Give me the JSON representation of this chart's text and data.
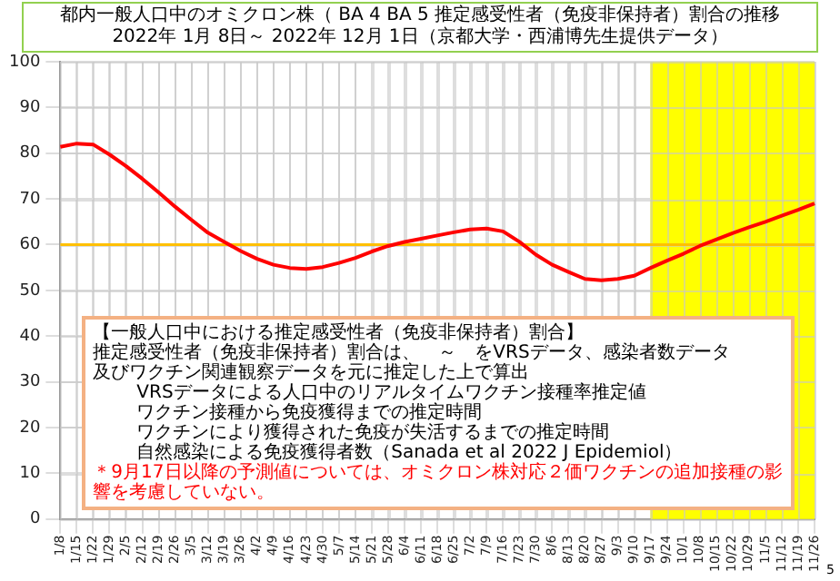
{
  "chart_data": {
    "type": "line",
    "title": "都内一般人口中のオミクロン株（ BA 4 BA 5 推定感受性者（免疫非保持者）割合の推移",
    "subtitle": "2022年 1月 8日～ 2022年 12月 1日（京都大学・西浦博先生提供データ）",
    "categories": [
      "1/8",
      "1/15",
      "1/22",
      "1/29",
      "2/5",
      "2/12",
      "2/19",
      "2/26",
      "3/5",
      "3/12",
      "3/19",
      "3/26",
      "4/2",
      "4/9",
      "4/16",
      "4/23",
      "4/30",
      "5/7",
      "5/14",
      "5/21",
      "5/28",
      "6/4",
      "6/11",
      "6/18",
      "6/25",
      "7/2",
      "7/9",
      "7/16",
      "7/23",
      "7/30",
      "8/6",
      "8/13",
      "8/20",
      "8/27",
      "9/3",
      "9/10",
      "9/17",
      "9/24",
      "10/1",
      "10/8",
      "10/15",
      "10/22",
      "10/29",
      "11/5",
      "11/12",
      "11/19",
      "11/26"
    ],
    "series": [
      {
        "color": "#ff0000",
        "values": [
          81.4,
          82.1,
          81.9,
          79.7,
          77.2,
          74.4,
          71.4,
          68.3,
          65.4,
          62.6,
          60.6,
          58.6,
          56.9,
          55.6,
          54.9,
          54.7,
          55.1,
          56,
          57.1,
          58.5,
          59.7,
          60.6,
          61.3,
          62,
          62.7,
          63.3,
          63.5,
          62.9,
          60.6,
          57.8,
          55.6,
          54,
          52.5,
          52.2,
          52.5,
          53.2,
          54.9,
          56.5,
          58,
          59.7,
          61.1,
          62.5,
          63.8,
          65,
          66.3,
          67.6,
          69
        ]
      }
    ],
    "ylim": [
      0,
      100
    ],
    "yticks": [
      0,
      10,
      20,
      30,
      40,
      50,
      60,
      70,
      80,
      90,
      100
    ],
    "grid": true,
    "legend": false,
    "ref_lines": [
      {
        "axis": "y",
        "value": 60,
        "color": "#ffc000"
      }
    ],
    "bands": [
      {
        "axis": "x",
        "from": "9/17",
        "to": "11/26",
        "color": "#ffff00"
      }
    ],
    "annotations": [
      "【一般人口中における推定感受性者（免疫非保持者）割合】",
      "推定感受性者（免疫非保持者）割合は、　～　をVRSデータ、感染者数データ",
      "及びワクチン関連観察データを元に推定した上で算出",
      "VRSデータによる人口中のリアルタイムワクチン接種率推定値",
      "ワクチン接種から免疫獲得までの推定時間",
      "ワクチンにより獲得された免疫が失活するまでの推定時間",
      "自然感染による免疫獲得者数（Sanada et al 2022 J Epidemiol）",
      "＊9月17日以降の予測値については、オミクロン株対応２価ワクチンの追加接種の影響を考慮していない。",
      "5"
    ]
  }
}
